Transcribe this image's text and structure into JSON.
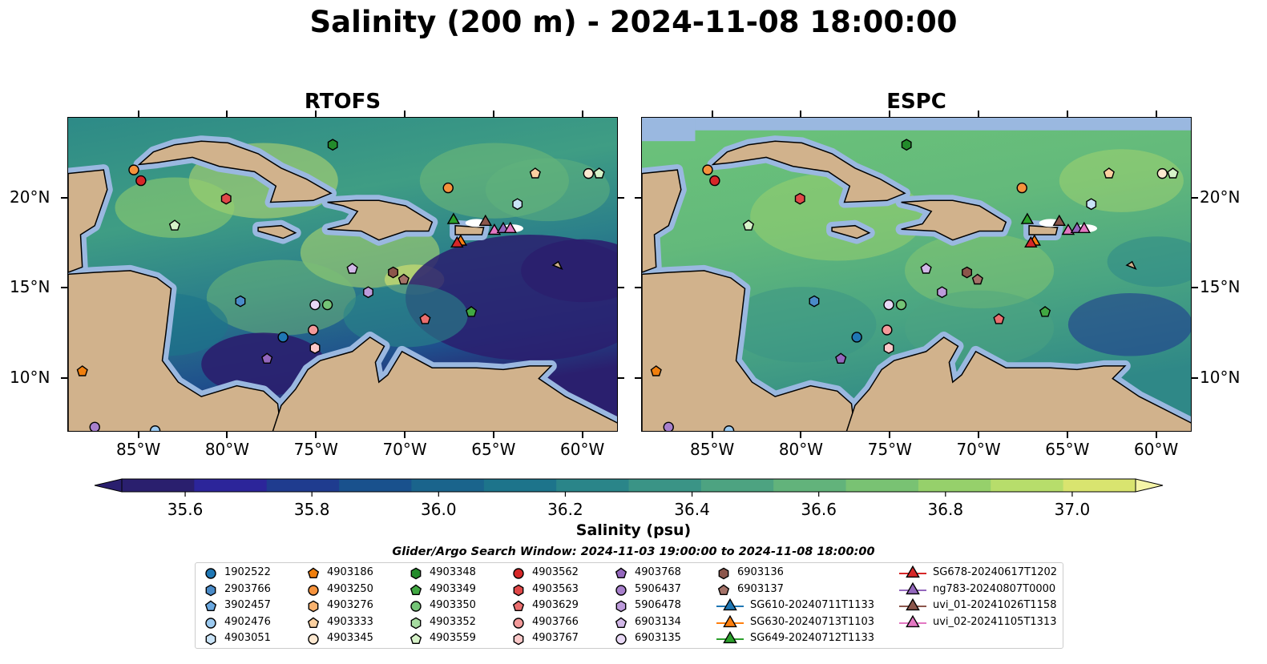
{
  "title": "Salinity (200 m) - 2024-11-08 18:00:00",
  "colors": {
    "ocean_low": "#2a1f6e",
    "ocean_mid": "#2d8a87",
    "ocean_high": "#d9e46f",
    "shelf": "#9ab8e0",
    "land": "#d1b28c"
  },
  "chart_data": [
    {
      "type": "heatmap",
      "title": "RTOFS",
      "x_ticks": [
        "85°W",
        "80°W",
        "75°W",
        "70°W",
        "65°W",
        "60°W"
      ],
      "y_ticks": [
        "20°N",
        "15°N",
        "10°N"
      ],
      "xlim": [
        -89,
        -58
      ],
      "ylim": [
        7,
        24.5
      ],
      "y_axis_side": "left",
      "markers": [
        {
          "id": "4903250",
          "lon": -85.3,
          "lat": 21.6
        },
        {
          "id": "4903562",
          "lon": -84.9,
          "lat": 21.0
        },
        {
          "id": "4903563",
          "lon": -80.1,
          "lat": 20.0
        },
        {
          "id": "4903559",
          "lon": -83.0,
          "lat": 18.5
        },
        {
          "id": "4903348",
          "lon": -74.1,
          "lat": 23.0
        },
        {
          "id": "4903250",
          "lon": -67.6,
          "lat": 20.6
        },
        {
          "id": "4903333",
          "lon": -62.7,
          "lat": 21.4
        },
        {
          "id": "4903051",
          "lon": -63.7,
          "lat": 19.7
        },
        {
          "id": "4903345",
          "lon": -59.7,
          "lat": 21.4
        },
        {
          "id": "4903559",
          "lon": -59.1,
          "lat": 21.4
        },
        {
          "id": "SG649-20240712T1133",
          "lon": -67.3,
          "lat": 18.8
        },
        {
          "id": "SG630-20240713T1103",
          "lon": -66.9,
          "lat": 17.6
        },
        {
          "id": "SG678-20240617T1202",
          "lon": -67.1,
          "lat": 17.5
        },
        {
          "id": "uvi_01-20241026T1158",
          "lon": -65.5,
          "lat": 18.7
        },
        {
          "id": "uvi_02-20241105T1313",
          "lon": -65.0,
          "lat": 18.2
        },
        {
          "id": "ng783-20240807T0000",
          "lon": -64.5,
          "lat": 18.3
        },
        {
          "id": "uvi_02-20241105T1313",
          "lon": -64.1,
          "lat": 18.3
        },
        {
          "id": "6903134",
          "lon": -73.0,
          "lat": 16.1
        },
        {
          "id": "6903136",
          "lon": -70.7,
          "lat": 15.9
        },
        {
          "id": "6903137",
          "lon": -70.1,
          "lat": 15.5
        },
        {
          "id": "5906478",
          "lon": -72.1,
          "lat": 14.8
        },
        {
          "id": "2903766",
          "lon": -79.3,
          "lat": 14.3
        },
        {
          "id": "6903135",
          "lon": -75.1,
          "lat": 14.1
        },
        {
          "id": "4903350",
          "lon": -74.4,
          "lat": 14.1
        },
        {
          "id": "4903349",
          "lon": -66.3,
          "lat": 13.7
        },
        {
          "id": "4903629",
          "lon": -68.9,
          "lat": 13.3
        },
        {
          "id": "4903766",
          "lon": -75.2,
          "lat": 12.7
        },
        {
          "id": "1902522",
          "lon": -76.9,
          "lat": 12.3
        },
        {
          "id": "4903767",
          "lon": -75.1,
          "lat": 11.7
        },
        {
          "id": "4903768",
          "lon": -77.8,
          "lat": 11.1
        },
        {
          "id": "4903186",
          "lon": -88.2,
          "lat": 10.4
        },
        {
          "id": "5906437",
          "lon": -87.5,
          "lat": 7.3
        },
        {
          "id": "4902476",
          "lon": -84.1,
          "lat": 7.1
        }
      ]
    },
    {
      "type": "heatmap",
      "title": "ESPC",
      "x_ticks": [
        "85°W",
        "80°W",
        "75°W",
        "70°W",
        "65°W",
        "60°W"
      ],
      "y_ticks": [
        "20°N",
        "15°N",
        "10°N"
      ],
      "xlim": [
        -89,
        -58
      ],
      "ylim": [
        7,
        24.5
      ],
      "y_axis_side": "right",
      "markers": "same as RTOFS"
    }
  ],
  "colorbar": {
    "label": "Salinity (psu)",
    "min": 35.5,
    "max": 37.1,
    "extend": "both",
    "ticks": [
      "35.6",
      "35.8",
      "36.0",
      "36.2",
      "36.4",
      "36.6",
      "36.8",
      "37.0"
    ],
    "colors": [
      "#2a1f6e",
      "#2c259a",
      "#1f3c8f",
      "#19518d",
      "#1a648c",
      "#1d748b",
      "#2a8589",
      "#3a9486",
      "#4da381",
      "#62b37b",
      "#79c273",
      "#96d06b",
      "#b7dd6b",
      "#d9e46f"
    ]
  },
  "legend": {
    "title": "Glider/Argo Search Window: 2024-11-03 19:00:00 to 2024-11-08 18:00:00",
    "columns": [
      [
        {
          "label": "1902522",
          "shape": "circle",
          "color": "#1f77b4"
        },
        {
          "label": "2903766",
          "shape": "hexagon",
          "color": "#4a8bc8"
        },
        {
          "label": "3902457",
          "shape": "pentagon",
          "color": "#6aa8e0"
        },
        {
          "label": "4902476",
          "shape": "circle",
          "color": "#9ccaf0"
        },
        {
          "label": "4903051",
          "shape": "hexagon",
          "color": "#c9e3f7"
        }
      ],
      [
        {
          "label": "4903186",
          "shape": "pentagon",
          "color": "#f07f0e"
        },
        {
          "label": "4903250",
          "shape": "circle",
          "color": "#f5923c"
        },
        {
          "label": "4903276",
          "shape": "hexagon",
          "color": "#f8b26f"
        },
        {
          "label": "4903333",
          "shape": "pentagon",
          "color": "#fbd0a0"
        },
        {
          "label": "4903345",
          "shape": "circle",
          "color": "#fde8d0"
        }
      ],
      [
        {
          "label": "4903348",
          "shape": "hexagon",
          "color": "#238b2b"
        },
        {
          "label": "4903349",
          "shape": "pentagon",
          "color": "#41a842"
        },
        {
          "label": "4903350",
          "shape": "circle",
          "color": "#74c476"
        },
        {
          "label": "4903352",
          "shape": "hexagon",
          "color": "#a6dba0"
        },
        {
          "label": "4903559",
          "shape": "pentagon",
          "color": "#d6f2c8"
        }
      ],
      [
        {
          "label": "4903562",
          "shape": "circle",
          "color": "#d62728"
        },
        {
          "label": "4903563",
          "shape": "hexagon",
          "color": "#e04848"
        },
        {
          "label": "4903629",
          "shape": "pentagon",
          "color": "#ea6e6e"
        },
        {
          "label": "4903766",
          "shape": "circle",
          "color": "#f39a9a"
        },
        {
          "label": "4903767",
          "shape": "hexagon",
          "color": "#fbc8c8"
        }
      ],
      [
        {
          "label": "4903768",
          "shape": "pentagon",
          "color": "#9467bd"
        },
        {
          "label": "5906437",
          "shape": "circle",
          "color": "#a880cc"
        },
        {
          "label": "5906478",
          "shape": "hexagon",
          "color": "#bd9bdb"
        },
        {
          "label": "6903134",
          "shape": "pentagon",
          "color": "#d2b8e8"
        },
        {
          "label": "6903135",
          "shape": "circle",
          "color": "#e8d8f5"
        }
      ],
      [
        {
          "label": "6903136",
          "shape": "hexagon",
          "color": "#8c564b"
        },
        {
          "label": "6903137",
          "shape": "pentagon",
          "color": "#a47268"
        },
        {
          "label": "SG610-20240711T1133",
          "shape": "triangle-line",
          "color": "#1f77b4"
        },
        {
          "label": "SG630-20240713T1103",
          "shape": "triangle-line",
          "color": "#ff7f0e"
        },
        {
          "label": "SG649-20240712T1133",
          "shape": "triangle-line",
          "color": "#2ca02c"
        }
      ],
      [
        {
          "label": "SG678-20240617T1202",
          "shape": "triangle-line",
          "color": "#d62728"
        },
        {
          "label": "ng783-20240807T0000",
          "shape": "triangle-line",
          "color": "#9467bd"
        },
        {
          "label": "uvi_01-20241026T1158",
          "shape": "triangle-line",
          "color": "#8c564b"
        },
        {
          "label": "uvi_02-20241105T1313",
          "shape": "triangle-line",
          "color": "#e377c2"
        }
      ]
    ]
  }
}
